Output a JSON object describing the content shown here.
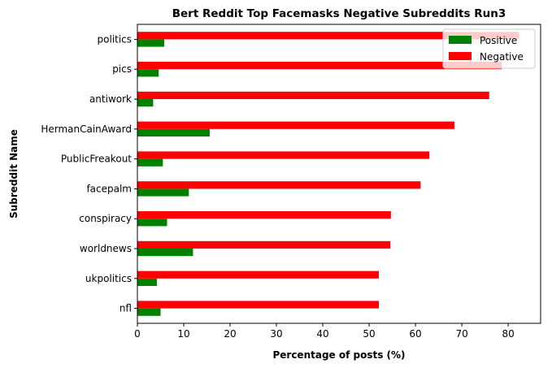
{
  "chart_data": {
    "type": "bar",
    "orientation": "horizontal",
    "title": "Bert Reddit Top Facemasks Negative Subreddits Run3",
    "xlabel": "Percentage of posts (%)",
    "ylabel": "Subreddit Name",
    "xlim": [
      0,
      87
    ],
    "xticks": [
      "0",
      "10",
      "20",
      "30",
      "40",
      "50",
      "60",
      "70",
      "80"
    ],
    "grid": false,
    "legend_position": "top-right",
    "categories": [
      "politics",
      "pics",
      "antiwork",
      "HermanCainAward",
      "PublicFreakout",
      "facepalm",
      "conspiracy",
      "worldnews",
      "ukpolitics",
      "nfl"
    ],
    "series": [
      {
        "name": "Positive",
        "color": "#008000",
        "values": [
          5.8,
          4.6,
          3.4,
          15.6,
          5.5,
          11.1,
          6.4,
          12.0,
          4.2,
          5.0
        ]
      },
      {
        "name": "Negative",
        "color": "#ff0000",
        "values": [
          82.3,
          78.6,
          75.9,
          68.4,
          63.0,
          61.1,
          54.7,
          54.6,
          52.1,
          52.1
        ]
      }
    ]
  }
}
